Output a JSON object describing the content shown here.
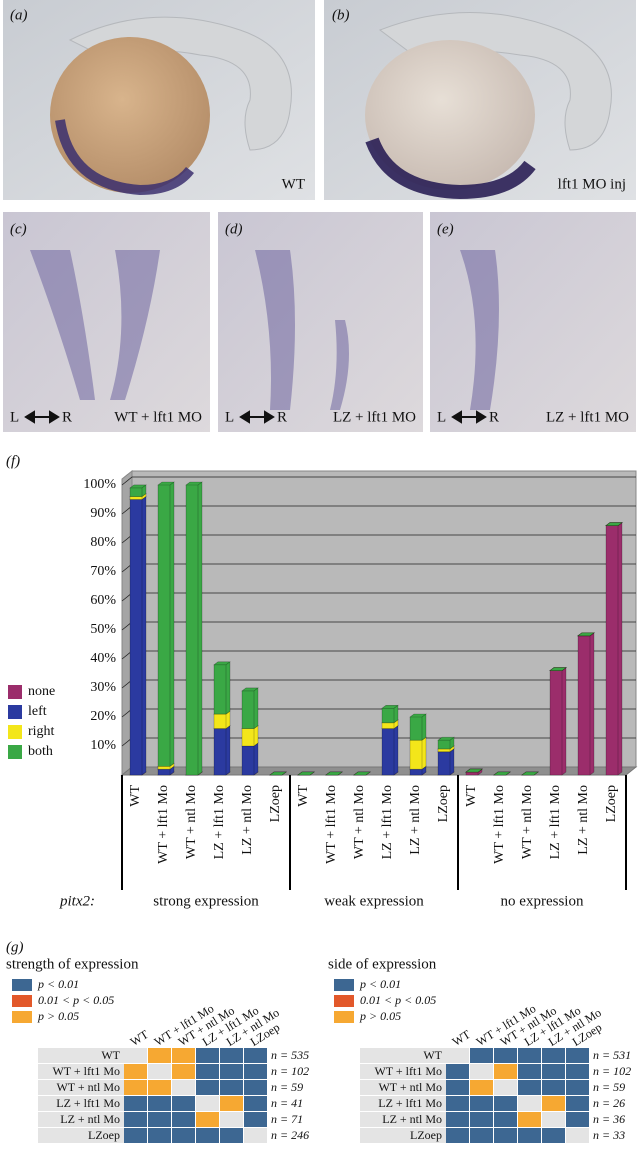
{
  "panels": [
    {
      "label": "(a)",
      "caption": "WT"
    },
    {
      "label": "(b)",
      "caption": "lft1 MO inj"
    },
    {
      "label": "(c)",
      "left": "L",
      "right": "R",
      "caption": "WT + lft1 MO"
    },
    {
      "label": "(d)",
      "left": "L",
      "right": "R",
      "caption": "LZ + lft1 MO"
    },
    {
      "label": "(e)",
      "left": "L",
      "right": "R",
      "caption": "LZ + lft1 MO"
    }
  ],
  "chart_data": {
    "type": "bar",
    "stacked": true,
    "panel_label": "(f)",
    "x_prefix": "pitx2:",
    "groups": [
      "strong expression",
      "weak expression",
      "no expression"
    ],
    "categories": [
      "WT",
      "WT + lft1 Mo",
      "WT + ntl Mo",
      "LZ + lft1 Mo",
      "LZ + ntl Mo",
      "LZoep",
      "WT",
      "WT + lft1 Mo",
      "WT + ntl Mo",
      "LZ + lft1 Mo",
      "LZ + ntl Mo",
      "LZoep",
      "WT",
      "WT + lft1 Mo",
      "WT + ntl Mo",
      "LZ + lft1 Mo",
      "LZ + ntl Mo",
      "LZoep"
    ],
    "series": [
      {
        "name": "none",
        "color": "#9b2d6b",
        "values": [
          0,
          0,
          0,
          0,
          0,
          0,
          0,
          0,
          0,
          0,
          0,
          0,
          1,
          0,
          0,
          36,
          48,
          86
        ]
      },
      {
        "name": "left",
        "color": "#2b3aa0",
        "values": [
          95,
          2,
          0,
          16,
          10,
          0,
          0,
          0,
          0,
          16,
          2,
          8,
          0,
          0,
          0,
          0,
          0,
          0
        ]
      },
      {
        "name": "right",
        "color": "#f3e61a",
        "values": [
          1,
          1,
          0,
          5,
          6,
          0,
          0,
          0,
          0,
          2,
          10,
          1,
          0,
          0,
          0,
          0,
          0,
          0
        ]
      },
      {
        "name": "both",
        "color": "#3aa845",
        "values": [
          3,
          97,
          100,
          17,
          13,
          0,
          0,
          0,
          0,
          5,
          8,
          3,
          0,
          0,
          0,
          0,
          0,
          0
        ]
      }
    ],
    "ylim": [
      0,
      100
    ],
    "yticks": [
      {
        "value": 10,
        "label": "10%"
      },
      {
        "value": 20,
        "label": "20%"
      },
      {
        "value": 30,
        "label": "30%"
      },
      {
        "value": 40,
        "label": "40%"
      },
      {
        "value": 50,
        "label": "50%"
      },
      {
        "value": 60,
        "label": "60%"
      },
      {
        "value": 70,
        "label": "70%"
      },
      {
        "value": 80,
        "label": "80%"
      },
      {
        "value": 90,
        "label": "90%"
      },
      {
        "value": 100,
        "label": "100%"
      }
    ],
    "grid": true,
    "legend": "left"
  },
  "panel_g": {
    "label": "(g)",
    "legend": [
      {
        "label": "p < 0.01",
        "color": "#3d6792"
      },
      {
        "label": "0.01 < p < 0.05",
        "color": "#e2582a"
      },
      {
        "label": "p > 0.05",
        "color": "#f6a832"
      }
    ],
    "matrices": [
      {
        "title": "strength of expression",
        "columns": [
          "WT",
          "WT + lft1 Mo",
          "WT + ntl Mo",
          "LZ + lft1 Mo",
          "LZ + ntl Mo",
          "LZoep"
        ],
        "rows": [
          {
            "label": "WT",
            "n": "n = 535",
            "cells": [
              null,
              2,
              2,
              0,
              0,
              0
            ]
          },
          {
            "label": "WT + lft1 Mo",
            "n": "n = 102",
            "cells": [
              2,
              null,
              2,
              0,
              0,
              0
            ]
          },
          {
            "label": "WT + ntl Mo",
            "n": "n = 59",
            "cells": [
              2,
              2,
              null,
              0,
              0,
              0
            ]
          },
          {
            "label": "LZ + lft1 Mo",
            "n": "n = 41",
            "cells": [
              0,
              0,
              0,
              null,
              2,
              0
            ]
          },
          {
            "label": "LZ + ntl Mo",
            "n": "n = 71",
            "cells": [
              0,
              0,
              0,
              2,
              null,
              0
            ]
          },
          {
            "label": "LZoep",
            "n": "n = 246",
            "cells": [
              0,
              0,
              0,
              0,
              0,
              null
            ]
          }
        ]
      },
      {
        "title": "side of expression",
        "columns": [
          "WT",
          "WT + lft1 Mo",
          "WT + ntl Mo",
          "LZ + lft1 Mo",
          "LZ + ntl Mo",
          "LZoep"
        ],
        "rows": [
          {
            "label": "WT",
            "n": "n = 531",
            "cells": [
              null,
              0,
              0,
              0,
              0,
              0
            ]
          },
          {
            "label": "WT + lft1 Mo",
            "n": "n = 102",
            "cells": [
              0,
              null,
              2,
              0,
              0,
              0
            ]
          },
          {
            "label": "WT + ntl Mo",
            "n": "n = 59",
            "cells": [
              0,
              2,
              null,
              0,
              0,
              0
            ]
          },
          {
            "label": "LZ + lft1 Mo",
            "n": "n = 26",
            "cells": [
              0,
              0,
              0,
              null,
              2,
              0
            ]
          },
          {
            "label": "LZ + ntl Mo",
            "n": "n = 36",
            "cells": [
              0,
              0,
              0,
              2,
              null,
              0
            ]
          },
          {
            "label": "LZoep",
            "n": "n = 33",
            "cells": [
              0,
              0,
              0,
              0,
              0,
              null
            ]
          }
        ]
      }
    ]
  }
}
